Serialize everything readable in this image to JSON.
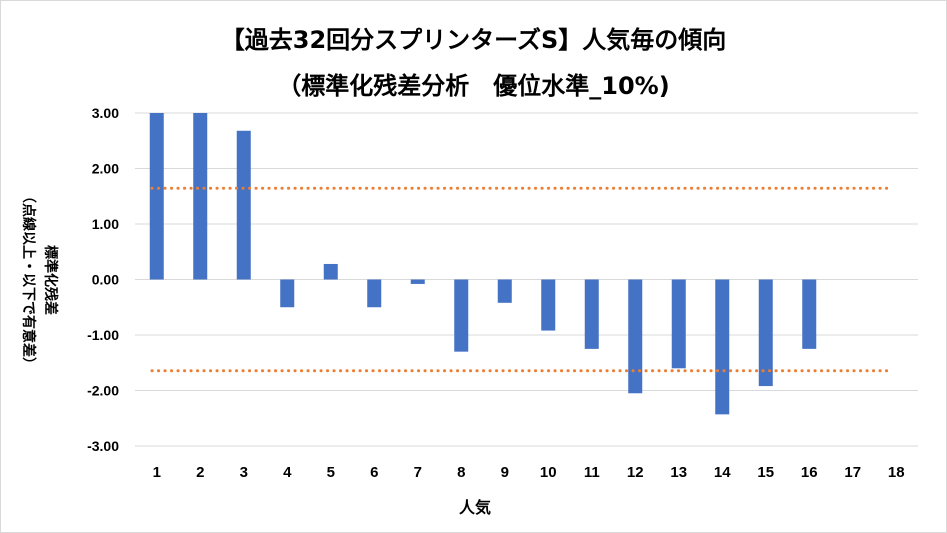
{
  "chart_data": {
    "type": "bar",
    "title": "【過去32回分スプリンターズS】人気毎の傾向",
    "subtitle": "（標準化残差分析　優位水準_10%)",
    "ylabel_lines": [
      "標準化残差",
      "（点線以上・以下で有意差）"
    ],
    "xlabel": "人気",
    "categories": [
      "1",
      "2",
      "3",
      "4",
      "5",
      "6",
      "7",
      "8",
      "9",
      "10",
      "11",
      "12",
      "13",
      "14",
      "15",
      "16",
      "17",
      "18"
    ],
    "values": [
      3.0,
      3.0,
      2.68,
      -0.5,
      0.28,
      -0.5,
      -0.08,
      -1.3,
      -0.42,
      -0.92,
      -1.25,
      -2.05,
      -1.6,
      -2.43,
      -1.92,
      -1.25,
      null,
      null
    ],
    "y_ticks": [
      "3.00",
      "2.00",
      "1.00",
      "0.00",
      "-1.00",
      "-2.00",
      "-3.00"
    ],
    "ylim": [
      -3,
      3
    ],
    "thresholds": [
      1.645,
      -1.645
    ],
    "bar_color": "#4472C4",
    "threshold_color": "#ED7D31",
    "grid_color": "#d9d9d9",
    "grid": true,
    "legend": "none"
  }
}
